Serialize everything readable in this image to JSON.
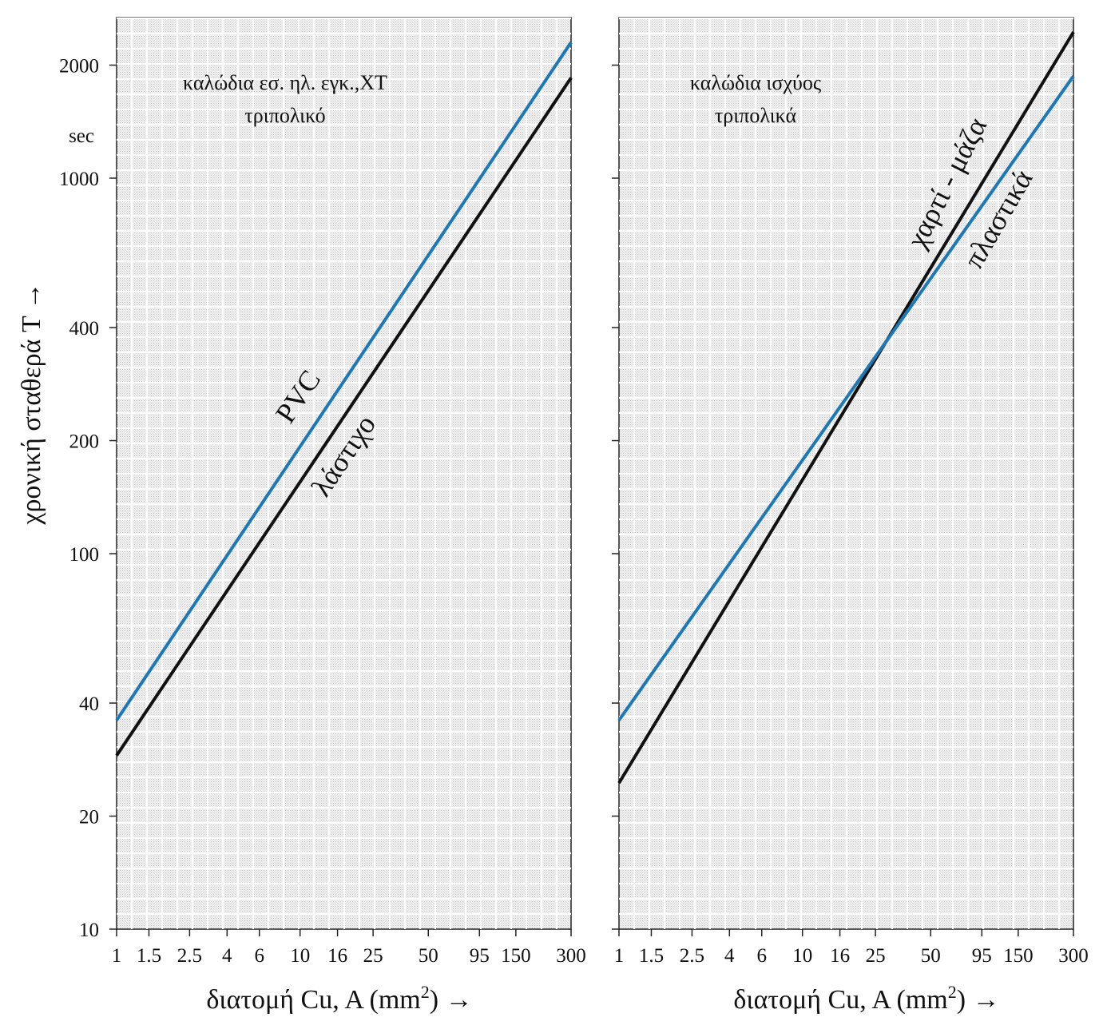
{
  "chart_data": [
    {
      "type": "line",
      "x_scale": "log",
      "y_scale": "log",
      "xlim": [
        1,
        300
      ],
      "ylim": [
        10,
        2500
      ],
      "x_ticks": [
        {
          "value": 1,
          "label": "1"
        },
        {
          "value": 1.5,
          "label": "1.5"
        },
        {
          "value": 2.5,
          "label": "2.5"
        },
        {
          "value": 4,
          "label": "4"
        },
        {
          "value": 6,
          "label": "6"
        },
        {
          "value": 10,
          "label": "10"
        },
        {
          "value": 16,
          "label": "16"
        },
        {
          "value": 25,
          "label": "25"
        },
        {
          "value": 50,
          "label": "50"
        },
        {
          "value": 95,
          "label": "95"
        },
        {
          "value": 150,
          "label": "150"
        },
        {
          "value": 300,
          "label": "300"
        }
      ],
      "y_ticks": [
        {
          "value": 10,
          "label": "10"
        },
        {
          "value": 20,
          "label": "20"
        },
        {
          "value": 40,
          "label": "40"
        },
        {
          "value": 100,
          "label": "100"
        },
        {
          "value": 200,
          "label": "200"
        },
        {
          "value": 400,
          "label": "400"
        },
        {
          "value": 1000,
          "label": "1000"
        },
        {
          "value": 2000,
          "label": "2000"
        }
      ],
      "y_unit": "sec",
      "ylabel": "χρονική σταθερά T →",
      "xlabel_main": "διατομή Cu, A (mm",
      "xlabel_sup": "2",
      "xlabel_tail": ") →",
      "annotation": [
        "καλώδια εσ. ηλ. εγκ.,ΧΤ",
        "τριπολικό"
      ],
      "grid": true,
      "series": [
        {
          "name": "PVC",
          "color": "#1f78b4",
          "x": [
            1,
            300
          ],
          "y": [
            36,
            2300
          ]
        },
        {
          "name": "λάστιχο",
          "color": "#111111",
          "x": [
            1,
            300
          ],
          "y": [
            29,
            1850
          ]
        }
      ]
    },
    {
      "type": "line",
      "x_scale": "log",
      "y_scale": "log",
      "xlim": [
        1,
        300
      ],
      "ylim": [
        10,
        2500
      ],
      "x_ticks": [
        {
          "value": 1,
          "label": "1"
        },
        {
          "value": 1.5,
          "label": "1.5"
        },
        {
          "value": 2.5,
          "label": "2.5"
        },
        {
          "value": 4,
          "label": "4"
        },
        {
          "value": 6,
          "label": "6"
        },
        {
          "value": 10,
          "label": "10"
        },
        {
          "value": 16,
          "label": "16"
        },
        {
          "value": 25,
          "label": "25"
        },
        {
          "value": 50,
          "label": "50"
        },
        {
          "value": 95,
          "label": "95"
        },
        {
          "value": 150,
          "label": "150"
        },
        {
          "value": 300,
          "label": "300"
        }
      ],
      "xlabel_main": "διατομή Cu, A (mm",
      "xlabel_sup": "2",
      "xlabel_tail": ") →",
      "annotation": [
        "καλώδια ισχύος",
        "τριπολικά"
      ],
      "grid": true,
      "series": [
        {
          "name": "χαρτί - μάζα",
          "color": "#111111",
          "x": [
            1,
            300
          ],
          "y": [
            24.5,
            2450
          ]
        },
        {
          "name": "πλαστικά",
          "color": "#1f78b4",
          "x": [
            1,
            300
          ],
          "y": [
            36,
            1870
          ]
        }
      ]
    }
  ]
}
